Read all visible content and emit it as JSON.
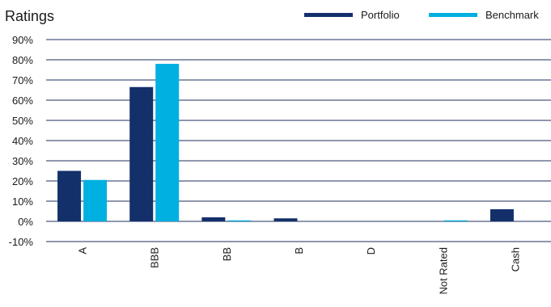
{
  "chart_data": {
    "type": "bar",
    "title": "Ratings",
    "categories": [
      "A",
      "BBB",
      "BB",
      "B",
      "D",
      "Not Rated",
      "Cash"
    ],
    "series": [
      {
        "name": "Portfolio",
        "color": "#13306a",
        "values": [
          25,
          66.5,
          2,
          1.5,
          0,
          0,
          6
        ]
      },
      {
        "name": "Benchmark",
        "color": "#00b0e0",
        "values": [
          20.5,
          78,
          0.5,
          0,
          0,
          0.5,
          0
        ]
      }
    ],
    "ylim": [
      -10,
      90
    ],
    "yticks": [
      90,
      80,
      70,
      60,
      50,
      40,
      30,
      20,
      10,
      0,
      -10
    ],
    "ytick_labels": [
      "90%",
      "80%",
      "70%",
      "60%",
      "50%",
      "40%",
      "30%",
      "20%",
      "10%",
      "0%",
      "-10%"
    ],
    "xlabel": "",
    "ylabel": "",
    "grid": true,
    "legend_position": "top-right"
  }
}
